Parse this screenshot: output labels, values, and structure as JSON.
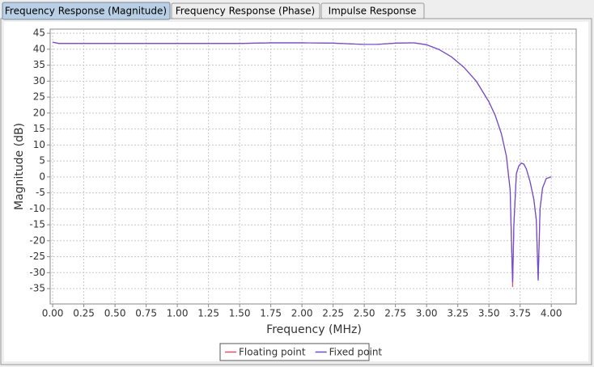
{
  "tabs": [
    "Frequency Response (Magnitude)",
    "Frequency Response (Phase)",
    "Impulse Response"
  ],
  "chart_data": {
    "type": "line",
    "x_label": "Frequency (MHz)",
    "y_label": "Magnitude (dB)",
    "x": [
      0,
      0.05,
      0.25,
      0.5,
      1.0,
      1.5,
      1.75,
      2.0,
      2.25,
      2.5,
      2.6,
      2.75,
      2.9,
      3.0,
      3.1,
      3.2,
      3.3,
      3.4,
      3.5,
      3.55,
      3.6,
      3.64,
      3.67,
      3.69,
      3.7,
      3.72,
      3.74,
      3.76,
      3.78,
      3.8,
      3.83,
      3.86,
      3.88,
      3.895,
      3.91,
      3.93,
      3.96,
      4.0
    ],
    "series": [
      {
        "name": "Floating point",
        "color": "#e0506a",
        "values": [
          42.2,
          41.8,
          41.8,
          41.8,
          41.8,
          41.8,
          42.0,
          42.0,
          41.9,
          41.5,
          41.5,
          41.9,
          42.0,
          41.4,
          39.9,
          37.6,
          34.3,
          29.9,
          23.5,
          19.3,
          13.5,
          6.5,
          -4,
          -34.5,
          -15,
          1,
          3.5,
          4.3,
          4.0,
          2.5,
          -1.5,
          -7,
          -13.5,
          -32,
          -10,
          -3.5,
          -0.5,
          0
        ]
      },
      {
        "name": "Fixed point",
        "color": "#6a4cd0",
        "values": [
          42.2,
          41.8,
          41.8,
          41.8,
          41.8,
          41.8,
          42.0,
          42.0,
          41.9,
          41.5,
          41.5,
          41.9,
          42.0,
          41.4,
          39.9,
          37.6,
          34.3,
          29.9,
          23.5,
          19.3,
          13.5,
          6.5,
          -4,
          -33,
          -15,
          1,
          3.5,
          4.3,
          4.0,
          2.5,
          -1.5,
          -7,
          -13.5,
          -32.5,
          -10,
          -3.5,
          -0.5,
          0
        ]
      }
    ],
    "xlim": [
      -0.02,
      4.2
    ],
    "ylim": [
      -39.8,
      46.3
    ],
    "xticks": [
      {
        "value": 0,
        "label": "0.00"
      },
      0.25,
      {
        "value": 0.5,
        "label": "0.50"
      },
      0.75,
      {
        "value": 1,
        "label": "1.00"
      },
      1.25,
      {
        "value": 1.5,
        "label": "1.50"
      },
      1.75,
      {
        "value": 2,
        "label": "2.00"
      },
      2.25,
      {
        "value": 2.5,
        "label": "2.50"
      },
      2.75,
      {
        "value": 3,
        "label": "3.00"
      },
      3.25,
      {
        "value": 3.5,
        "label": "3.50"
      },
      3.75,
      {
        "value": 4,
        "label": "4.00"
      }
    ],
    "yticks": [
      -35,
      -30,
      -25,
      -20,
      -15,
      -10,
      -5,
      0,
      5,
      10,
      15,
      20,
      25,
      30,
      35,
      40,
      45
    ],
    "grid": true,
    "legend": "bottom"
  }
}
